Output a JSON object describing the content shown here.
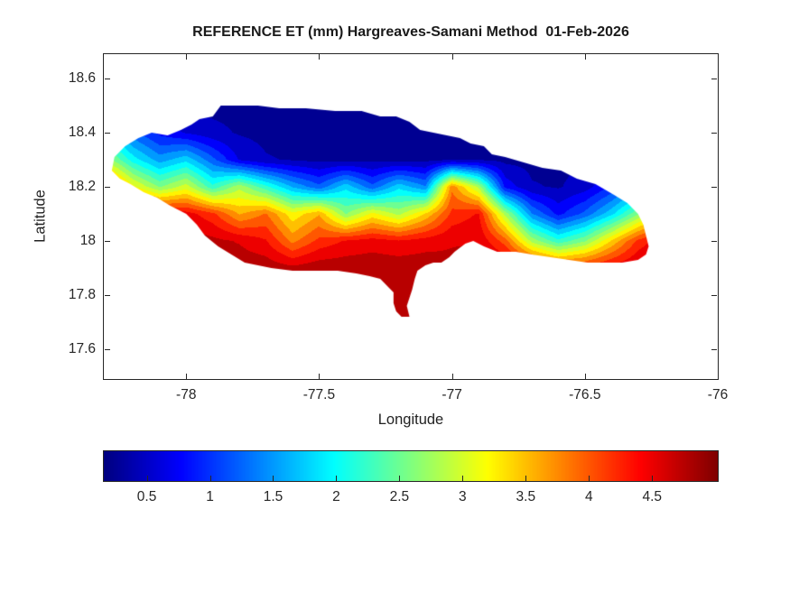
{
  "figure": {
    "background": "#ffffff",
    "axes_color": "#262626"
  },
  "chart_data": {
    "type": "heatmap",
    "title": "REFERENCE ET (mm) Hargreaves-Samani Method  01-Feb-2026",
    "xlabel": "Longitude",
    "ylabel": "Latitude",
    "xlim": [
      -78.31,
      -76.0
    ],
    "ylim": [
      17.49,
      18.69
    ],
    "xticks": [
      -78,
      -77.5,
      -77,
      -76.5,
      -76
    ],
    "xtick_labels": [
      "-78",
      "-77.5",
      "-77",
      "-76.5",
      "-76"
    ],
    "yticks": [
      18.6,
      18.4,
      18.2,
      18.0,
      17.8,
      17.6
    ],
    "ytick_labels": [
      "18.6",
      "18.4",
      "18.2",
      "18",
      "17.8",
      "17.6"
    ],
    "colormap": "jet",
    "clim": [
      0.16,
      5.02
    ],
    "colorbar_orientation": "horizontal",
    "colorbar_ticks": [
      0.5,
      1,
      1.5,
      2,
      2.5,
      3,
      3.5,
      4,
      4.5
    ],
    "colorbar_tick_labels": [
      "0.5",
      "1",
      "1.5",
      "2",
      "2.5",
      "3",
      "3.5",
      "4",
      "4.5"
    ],
    "legend": "none",
    "grid_lines": false,
    "region": "Jamaica",
    "grid": {
      "lons": [
        -78.4,
        -78.3,
        -78.2,
        -78.1,
        -78.0,
        -77.9,
        -77.8,
        -77.7,
        -77.6,
        -77.5,
        -77.4,
        -77.3,
        -77.2,
        -77.1,
        -77.0,
        -76.9,
        -76.8,
        -76.7,
        -76.6,
        -76.5,
        -76.4,
        -76.3,
        -76.2,
        -76.1
      ],
      "lats": [
        18.6,
        18.5,
        18.4,
        18.3,
        18.2,
        18.1,
        18.0,
        17.9,
        17.8,
        17.7,
        17.6
      ],
      "et_values": [
        [
          0.3,
          0.3,
          0.3,
          0.3,
          0.3,
          0.3,
          0.3,
          0.3,
          0.3,
          0.3,
          0.3,
          0.3,
          0.3,
          0.3,
          0.3,
          0.3,
          0.3,
          0.3,
          0.3,
          0.3,
          0.3,
          0.3,
          0.3,
          0.3
        ],
        [
          0.4,
          0.35,
          0.3,
          0.3,
          0.3,
          0.3,
          0.3,
          0.3,
          0.3,
          0.3,
          0.3,
          0.3,
          0.3,
          0.3,
          0.3,
          0.3,
          0.3,
          0.3,
          0.3,
          0.3,
          0.3,
          0.3,
          0.35,
          0.4
        ],
        [
          2.2,
          1.8,
          1.2,
          0.8,
          0.6,
          0.45,
          0.35,
          0.3,
          0.3,
          0.3,
          0.3,
          0.3,
          0.3,
          0.3,
          0.3,
          0.3,
          0.3,
          0.3,
          0.3,
          0.3,
          0.35,
          0.4,
          0.45,
          0.5
        ],
        [
          3.2,
          2.8,
          2.0,
          1.5,
          1.8,
          1.2,
          0.6,
          0.4,
          0.35,
          0.3,
          0.3,
          0.3,
          0.3,
          0.3,
          0.35,
          0.35,
          0.3,
          0.3,
          0.3,
          0.35,
          0.4,
          0.6,
          0.8,
          1.0
        ],
        [
          4.6,
          4.2,
          3.2,
          2.6,
          3.0,
          2.2,
          2.8,
          2.2,
          1.6,
          1.2,
          1.8,
          1.2,
          1.8,
          1.4,
          3.8,
          2.8,
          0.8,
          0.4,
          0.35,
          0.5,
          0.9,
          1.4,
          1.9,
          2.4
        ],
        [
          4.8,
          4.8,
          4.7,
          4.6,
          4.5,
          4.2,
          3.6,
          3.9,
          3.2,
          3.6,
          2.6,
          3.2,
          2.8,
          3.4,
          4.2,
          4.4,
          2.8,
          1.4,
          0.8,
          1.2,
          1.8,
          2.6,
          3.4,
          3.8
        ],
        [
          4.8,
          4.8,
          4.8,
          4.8,
          4.8,
          4.7,
          4.6,
          4.4,
          3.8,
          4.2,
          4.4,
          4.5,
          4.4,
          4.5,
          4.6,
          4.6,
          4.0,
          2.8,
          2.2,
          2.6,
          3.4,
          4.2,
          4.6,
          4.7
        ],
        [
          4.8,
          4.8,
          4.8,
          4.8,
          4.8,
          4.8,
          4.8,
          4.8,
          4.7,
          4.8,
          4.8,
          4.8,
          4.8,
          4.8,
          4.7,
          4.8,
          4.8,
          4.5,
          4.2,
          4.3,
          4.5,
          4.7,
          4.8,
          4.8
        ],
        [
          4.8,
          4.8,
          4.8,
          4.8,
          4.8,
          4.8,
          4.8,
          4.8,
          4.8,
          4.8,
          4.8,
          4.8,
          4.8,
          4.8,
          4.8,
          4.8,
          4.8,
          4.8,
          4.8,
          4.8,
          4.8,
          4.8,
          4.8,
          4.8
        ],
        [
          4.8,
          4.8,
          4.8,
          4.8,
          4.8,
          4.8,
          4.8,
          4.8,
          4.8,
          4.8,
          4.8,
          4.8,
          4.8,
          4.8,
          4.8,
          4.8,
          4.8,
          4.8,
          4.8,
          4.8,
          4.8,
          4.8,
          4.8,
          4.8
        ],
        [
          4.8,
          4.8,
          4.8,
          4.8,
          4.8,
          4.8,
          4.8,
          4.8,
          4.8,
          4.8,
          4.8,
          4.8,
          4.8,
          4.8,
          4.8,
          4.8,
          4.8,
          4.8,
          4.8,
          4.8,
          4.8,
          4.8,
          4.8,
          4.8
        ]
      ]
    },
    "outline": [
      [
        -78.28,
        18.26
      ],
      [
        -78.27,
        18.31
      ],
      [
        -78.23,
        18.35
      ],
      [
        -78.18,
        18.38
      ],
      [
        -78.13,
        18.4
      ],
      [
        -78.07,
        18.39
      ],
      [
        -78.02,
        18.41
      ],
      [
        -77.98,
        18.43
      ],
      [
        -77.95,
        18.45
      ],
      [
        -77.9,
        18.46
      ],
      [
        -77.87,
        18.5
      ],
      [
        -77.81,
        18.5
      ],
      [
        -77.73,
        18.5
      ],
      [
        -77.65,
        18.49
      ],
      [
        -77.55,
        18.49
      ],
      [
        -77.44,
        18.48
      ],
      [
        -77.34,
        18.48
      ],
      [
        -77.27,
        18.46
      ],
      [
        -77.21,
        18.46
      ],
      [
        -77.16,
        18.44
      ],
      [
        -77.12,
        18.41
      ],
      [
        -77.07,
        18.4
      ],
      [
        -77.02,
        18.39
      ],
      [
        -76.97,
        18.38
      ],
      [
        -76.93,
        18.36
      ],
      [
        -76.88,
        18.35
      ],
      [
        -76.85,
        18.32
      ],
      [
        -76.8,
        18.31
      ],
      [
        -76.73,
        18.29
      ],
      [
        -76.66,
        18.27
      ],
      [
        -76.59,
        18.26
      ],
      [
        -76.53,
        18.23
      ],
      [
        -76.46,
        18.21
      ],
      [
        -76.39,
        18.17
      ],
      [
        -76.34,
        18.14
      ],
      [
        -76.3,
        18.1
      ],
      [
        -76.28,
        18.06
      ],
      [
        -76.27,
        18.02
      ],
      [
        -76.26,
        17.98
      ],
      [
        -76.27,
        17.95
      ],
      [
        -76.3,
        17.93
      ],
      [
        -76.36,
        17.92
      ],
      [
        -76.42,
        17.92
      ],
      [
        -76.49,
        17.92
      ],
      [
        -76.56,
        17.93
      ],
      [
        -76.63,
        17.94
      ],
      [
        -76.7,
        17.95
      ],
      [
        -76.76,
        17.96
      ],
      [
        -76.83,
        17.96
      ],
      [
        -76.88,
        17.98
      ],
      [
        -76.92,
        18.0
      ],
      [
        -76.95,
        17.99
      ],
      [
        -76.99,
        17.96
      ],
      [
        -77.01,
        17.94
      ],
      [
        -77.04,
        17.92
      ],
      [
        -77.07,
        17.92
      ],
      [
        -77.1,
        17.91
      ],
      [
        -77.13,
        17.89
      ],
      [
        -77.14,
        17.86
      ],
      [
        -77.15,
        17.82
      ],
      [
        -77.16,
        17.79
      ],
      [
        -77.17,
        17.76
      ],
      [
        -77.16,
        17.72
      ],
      [
        -77.19,
        17.72
      ],
      [
        -77.21,
        17.74
      ],
      [
        -77.22,
        17.77
      ],
      [
        -77.22,
        17.81
      ],
      [
        -77.24,
        17.83
      ],
      [
        -77.27,
        17.86
      ],
      [
        -77.31,
        17.87
      ],
      [
        -77.36,
        17.88
      ],
      [
        -77.43,
        17.89
      ],
      [
        -77.51,
        17.89
      ],
      [
        -77.6,
        17.89
      ],
      [
        -77.68,
        17.9
      ],
      [
        -77.73,
        17.91
      ],
      [
        -77.78,
        17.92
      ],
      [
        -77.83,
        17.95
      ],
      [
        -77.88,
        17.98
      ],
      [
        -77.93,
        18.02
      ],
      [
        -77.96,
        18.06
      ],
      [
        -78.0,
        18.1
      ],
      [
        -78.06,
        18.13
      ],
      [
        -78.11,
        18.16
      ],
      [
        -78.16,
        18.18
      ],
      [
        -78.21,
        18.21
      ],
      [
        -78.25,
        18.23
      ]
    ]
  }
}
